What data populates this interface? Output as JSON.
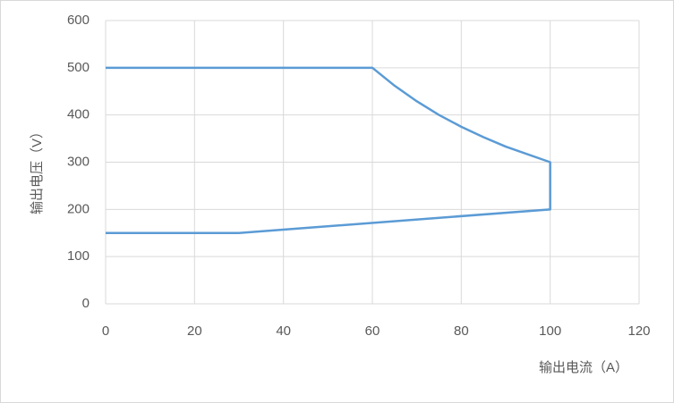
{
  "chart_data": {
    "type": "line",
    "x_label": "输出电流（A）",
    "y_label": "输出电压（V）",
    "series": [
      {
        "color": "#5b9bd5",
        "x": [
          0,
          60,
          65,
          70,
          75,
          80,
          85,
          90,
          100,
          100,
          30,
          0
        ],
        "values": [
          500,
          500,
          462,
          429,
          400,
          375,
          353,
          333,
          300,
          200,
          150,
          150
        ]
      }
    ],
    "xlim": [
      0,
      120
    ],
    "xticks": [
      0,
      20,
      40,
      60,
      80,
      100,
      120
    ],
    "ylim": [
      0,
      600
    ],
    "yticks": [
      0,
      100,
      200,
      300,
      400,
      500,
      600
    ],
    "grid": true
  }
}
